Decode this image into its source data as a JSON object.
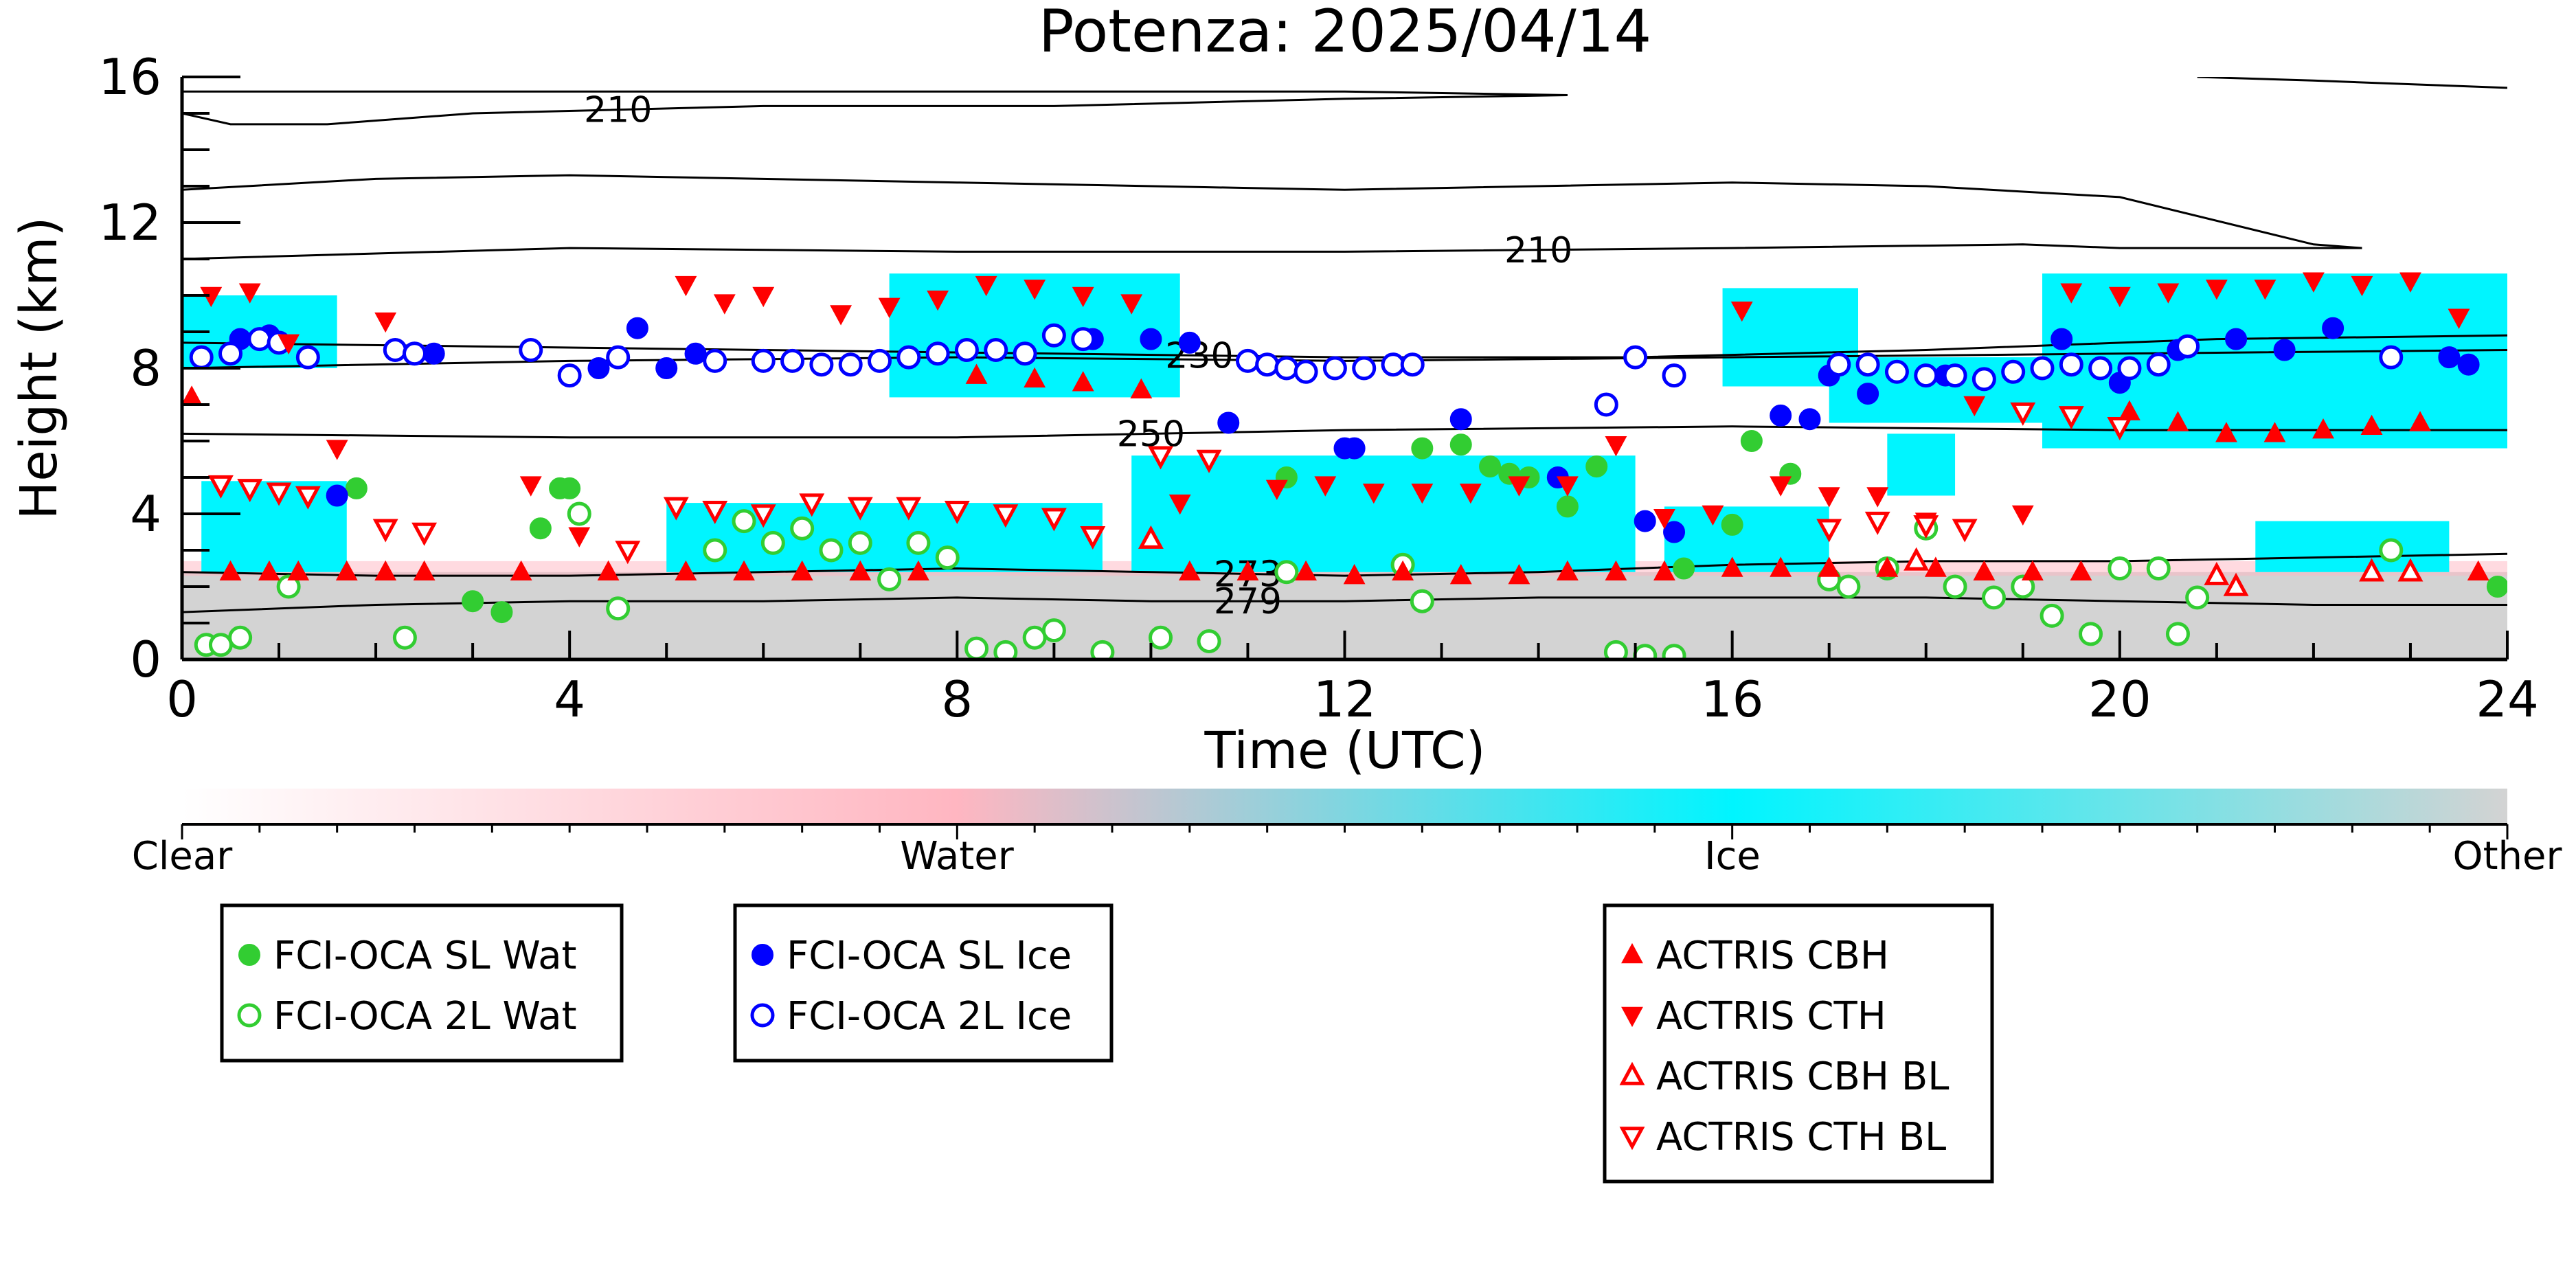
{
  "chart_data": {
    "type": "scatter",
    "title": "Potenza: 2025/04/14",
    "xlabel": "Time (UTC)",
    "ylabel": "Height (km)",
    "xlim": [
      0,
      24
    ],
    "ylim": [
      0,
      16
    ],
    "xticks": [
      0,
      4,
      8,
      12,
      16,
      20,
      24
    ],
    "yticks": [
      0,
      4,
      8,
      12,
      16
    ],
    "background_layers": {
      "description_colors": {
        "Water": "#ffb6c1",
        "Ice": "#00f5ff",
        "Other": "#d3d3d3"
      },
      "ice_regions": [
        {
          "x0": 0.0,
          "x1": 1.6,
          "y0": 8.0,
          "y1": 10.0
        },
        {
          "x0": 7.3,
          "x1": 10.3,
          "y0": 7.2,
          "y1": 10.6
        },
        {
          "x0": 15.9,
          "x1": 17.3,
          "y0": 7.5,
          "y1": 10.2
        },
        {
          "x0": 17.0,
          "x1": 20.0,
          "y0": 6.5,
          "y1": 8.3
        },
        {
          "x0": 19.2,
          "x1": 24.0,
          "y0": 5.8,
          "y1": 10.6
        },
        {
          "x0": 0.2,
          "x1": 1.7,
          "y0": 2.4,
          "y1": 4.9
        },
        {
          "x0": 5.0,
          "x1": 9.5,
          "y0": 2.4,
          "y1": 4.3
        },
        {
          "x0": 9.8,
          "x1": 15.0,
          "y0": 2.4,
          "y1": 5.6
        },
        {
          "x0": 15.3,
          "x1": 17.0,
          "y0": 2.4,
          "y1": 4.2
        },
        {
          "x0": 17.6,
          "x1": 18.3,
          "y0": 4.5,
          "y1": 6.2
        },
        {
          "x0": 21.4,
          "x1": 23.4,
          "y0": 2.4,
          "y1": 3.8
        }
      ],
      "other_bands": [
        {
          "x0": 0.0,
          "x1": 24.0,
          "y0": 0.0,
          "y1": 2.4
        }
      ]
    },
    "isotherms": [
      {
        "label": "210",
        "x": [
          0,
          0.5,
          1.5,
          3,
          6,
          9,
          12,
          14.3
        ],
        "y": [
          15.0,
          14.7,
          14.7,
          15.0,
          15.2,
          15.2,
          15.4,
          15.5
        ]
      },
      {
        "label": "",
        "x": [
          0,
          3,
          6,
          9,
          12,
          14.3
        ],
        "y": [
          15.6,
          15.6,
          15.6,
          15.6,
          15.6,
          15.5
        ]
      },
      {
        "label": "",
        "x": [
          0,
          2,
          4,
          8,
          12,
          16,
          18,
          20,
          22,
          22.5
        ],
        "y": [
          12.9,
          13.2,
          13.3,
          13.1,
          12.9,
          13.1,
          13.0,
          12.7,
          11.4,
          11.3
        ]
      },
      {
        "label": "210",
        "x": [
          0,
          4,
          8,
          12,
          16,
          19,
          20,
          22.5
        ],
        "y": [
          11.0,
          11.3,
          11.2,
          11.2,
          11.3,
          11.4,
          11.3,
          11.3
        ]
      },
      {
        "label": "",
        "x": [
          20.8,
          22,
          23,
          24
        ],
        "y": [
          16.0,
          15.9,
          15.8,
          15.7
        ]
      },
      {
        "label": "230",
        "x": [
          0,
          3,
          6,
          9,
          12,
          15,
          18,
          21,
          24
        ],
        "y": [
          8.7,
          8.6,
          8.5,
          8.4,
          8.3,
          8.3,
          8.5,
          8.8,
          8.9
        ]
      },
      {
        "label": "",
        "x": [
          0,
          4,
          8,
          12,
          16,
          20,
          24
        ],
        "y": [
          8.0,
          8.2,
          8.3,
          8.2,
          8.3,
          8.4,
          8.5
        ]
      },
      {
        "label": "250",
        "x": [
          0,
          4,
          8,
          12,
          16,
          20,
          24
        ],
        "y": [
          6.2,
          6.1,
          6.1,
          6.3,
          6.4,
          6.3,
          6.3
        ]
      },
      {
        "label": "273",
        "x": [
          0,
          2,
          4,
          6,
          8,
          10,
          12,
          14,
          16,
          18,
          20,
          22,
          24
        ],
        "y": [
          2.4,
          2.3,
          2.3,
          2.4,
          2.5,
          2.4,
          2.3,
          2.4,
          2.6,
          2.7,
          2.7,
          2.8,
          2.9
        ]
      },
      {
        "label": "279",
        "x": [
          0,
          2,
          4,
          6,
          8,
          10,
          12,
          14,
          16,
          18,
          20,
          22,
          24
        ],
        "y": [
          1.3,
          1.5,
          1.6,
          1.6,
          1.7,
          1.6,
          1.6,
          1.7,
          1.7,
          1.7,
          1.6,
          1.5,
          1.5
        ]
      }
    ],
    "series": [
      {
        "name": "FCI-OCA SL Wat",
        "marker": "circle-filled",
        "color": "#32cd32",
        "x": [
          1.8,
          3.0,
          3.3,
          3.7,
          3.9,
          4.0,
          11.4,
          12.8,
          13.2,
          13.5,
          13.7,
          13.9,
          14.3,
          14.6,
          15.5,
          16.0,
          16.2,
          16.6,
          23.9
        ],
        "y": [
          4.7,
          1.6,
          1.3,
          3.6,
          4.7,
          4.7,
          5.0,
          5.8,
          5.9,
          5.3,
          5.1,
          5.0,
          4.2,
          5.3,
          2.5,
          3.7,
          6.0,
          5.1,
          2.0
        ]
      },
      {
        "name": "FCI-OCA 2L Wat",
        "marker": "circle-open",
        "color": "#32cd32",
        "x": [
          0.25,
          0.4,
          0.6,
          1.1,
          2.3,
          4.1,
          4.5,
          5.5,
          5.8,
          6.1,
          6.4,
          6.7,
          7.0,
          7.3,
          7.6,
          7.9,
          8.2,
          8.5,
          8.8,
          9.0,
          9.5,
          10.1,
          10.6,
          11.4,
          12.6,
          12.8,
          14.8,
          15.1,
          15.4,
          17.0,
          17.2,
          17.6,
          18.0,
          18.3,
          18.7,
          19.0,
          19.3,
          19.7,
          20.0,
          20.4,
          20.6,
          20.8,
          22.8
        ],
        "y": [
          0.4,
          0.4,
          0.6,
          2.0,
          0.6,
          4.0,
          1.4,
          3.0,
          3.8,
          3.2,
          3.6,
          3.0,
          3.2,
          2.2,
          3.2,
          2.8,
          0.3,
          0.2,
          0.6,
          0.8,
          0.2,
          0.6,
          0.5,
          2.4,
          2.6,
          1.6,
          0.2,
          0.1,
          0.1,
          2.2,
          2.0,
          2.5,
          3.6,
          2.0,
          1.7,
          2.0,
          1.2,
          0.7,
          2.5,
          2.5,
          0.7,
          1.7,
          3.0
        ]
      },
      {
        "name": "FCI-OCA SL Ice",
        "marker": "circle-filled",
        "color": "#0000ff",
        "x": [
          0.6,
          0.9,
          1.6,
          2.6,
          4.3,
          4.7,
          5.0,
          5.3,
          9.4,
          10.0,
          10.4,
          10.8,
          12.0,
          12.1,
          13.2,
          14.2,
          15.1,
          15.4,
          16.5,
          16.8,
          17.0,
          17.4,
          18.2,
          19.4,
          20.0,
          20.6,
          21.2,
          21.7,
          22.2,
          23.4,
          23.6
        ],
        "y": [
          8.8,
          8.9,
          4.5,
          8.4,
          8.0,
          9.1,
          8.0,
          8.4,
          8.8,
          8.8,
          8.7,
          6.5,
          5.8,
          5.8,
          6.6,
          5.0,
          3.8,
          3.5,
          6.7,
          6.6,
          7.8,
          7.3,
          7.8,
          8.8,
          7.6,
          8.5,
          8.8,
          8.5,
          9.1,
          8.3,
          8.1
        ]
      },
      {
        "name": "FCI-OCA 2L Ice",
        "marker": "circle-open",
        "color": "#0000ff",
        "x": [
          0.2,
          0.5,
          0.8,
          1.0,
          1.3,
          2.2,
          2.4,
          3.6,
          4.0,
          4.5,
          5.5,
          6.0,
          6.3,
          6.6,
          6.9,
          7.2,
          7.5,
          7.8,
          8.1,
          8.4,
          8.7,
          9.0,
          9.3,
          11.0,
          11.2,
          11.4,
          11.6,
          11.9,
          12.2,
          12.5,
          12.7,
          14.7,
          15.0,
          15.4,
          17.1,
          17.4,
          17.7,
          18.0,
          18.3,
          18.6,
          18.9,
          19.2,
          19.5,
          19.8,
          20.1,
          20.4,
          20.7,
          22.8
        ],
        "y": [
          8.3,
          8.4,
          8.8,
          8.7,
          8.3,
          8.5,
          8.4,
          8.5,
          7.8,
          8.3,
          8.2,
          8.2,
          8.2,
          8.1,
          8.1,
          8.2,
          8.3,
          8.4,
          8.5,
          8.5,
          8.4,
          8.9,
          8.8,
          8.2,
          8.1,
          8.0,
          7.9,
          8.0,
          8.0,
          8.1,
          8.1,
          7.0,
          8.3,
          7.8,
          8.1,
          8.1,
          7.9,
          7.8,
          7.8,
          7.7,
          7.9,
          8.0,
          8.1,
          8.0,
          8.0,
          8.1,
          8.6,
          8.3
        ]
      },
      {
        "name": "ACTRIS CBH",
        "marker": "triangle-up-filled",
        "color": "#ff0000",
        "x": [
          0.1,
          0.5,
          0.9,
          1.2,
          1.7,
          2.1,
          2.5,
          3.5,
          4.4,
          5.2,
          5.8,
          6.4,
          7.0,
          7.6,
          8.2,
          8.8,
          9.3,
          9.9,
          10.4,
          11.0,
          11.6,
          12.1,
          12.6,
          13.2,
          13.8,
          14.3,
          14.8,
          15.3,
          16.0,
          16.5,
          17.0,
          17.6,
          18.1,
          18.6,
          19.1,
          19.6,
          20.1,
          20.6,
          21.1,
          21.6,
          22.1,
          22.6,
          23.1,
          23.7
        ],
        "y": [
          7.2,
          2.4,
          2.4,
          2.4,
          2.4,
          2.4,
          2.4,
          2.4,
          2.4,
          2.4,
          2.4,
          2.4,
          2.4,
          2.4,
          7.8,
          7.7,
          7.6,
          7.4,
          2.4,
          2.4,
          2.4,
          2.3,
          2.4,
          2.3,
          2.3,
          2.4,
          2.4,
          2.4,
          2.5,
          2.5,
          2.5,
          2.5,
          2.5,
          2.4,
          2.4,
          2.4,
          6.8,
          6.5,
          6.2,
          6.2,
          6.3,
          6.4,
          6.5,
          2.4
        ]
      },
      {
        "name": "ACTRIS CTH",
        "marker": "triangle-down-filled",
        "color": "#ff0000",
        "x": [
          0.3,
          0.7,
          1.1,
          1.6,
          2.1,
          2.5,
          3.6,
          4.1,
          5.2,
          5.6,
          6.0,
          6.8,
          7.3,
          7.8,
          8.3,
          8.8,
          9.3,
          9.8,
          10.3,
          11.3,
          11.8,
          12.3,
          12.8,
          13.3,
          13.8,
          14.3,
          14.8,
          15.3,
          15.8,
          16.1,
          16.5,
          17.0,
          17.5,
          18.0,
          18.5,
          19.0,
          19.5,
          20.0,
          20.5,
          21.0,
          21.5,
          22.0,
          22.5,
          23.0,
          23.5
        ],
        "y": [
          10.0,
          10.1,
          8.7,
          5.8,
          9.3,
          3.5,
          4.8,
          3.4,
          10.3,
          9.8,
          10.0,
          9.5,
          9.7,
          9.9,
          10.3,
          10.2,
          10.0,
          9.8,
          4.3,
          4.7,
          4.8,
          4.6,
          4.6,
          4.6,
          4.8,
          4.8,
          5.9,
          3.9,
          4.0,
          9.6,
          4.8,
          4.5,
          4.5,
          3.8,
          7.0,
          4.0,
          10.1,
          10.0,
          10.1,
          10.2,
          10.2,
          10.4,
          10.3,
          10.4,
          9.4
        ]
      },
      {
        "name": "ACTRIS CBH BL",
        "marker": "triangle-up-open",
        "color": "#ff0000",
        "x": [
          10.0,
          17.9,
          21.0,
          21.2,
          22.6,
          23.0
        ],
        "y": [
          3.3,
          2.7,
          2.3,
          2.0,
          2.4,
          2.4
        ]
      },
      {
        "name": "ACTRIS CTH BL",
        "marker": "triangle-down-open",
        "color": "#ff0000",
        "x": [
          0.4,
          0.7,
          1.0,
          1.3,
          2.1,
          2.5,
          4.6,
          5.1,
          5.5,
          6.0,
          6.5,
          7.0,
          7.5,
          8.0,
          8.5,
          9.0,
          9.4,
          10.1,
          10.6,
          17.0,
          17.5,
          18.0,
          18.4,
          19.0,
          19.5,
          20.0
        ],
        "y": [
          4.8,
          4.7,
          4.6,
          4.5,
          3.6,
          3.5,
          3.0,
          4.2,
          4.1,
          4.0,
          4.3,
          4.2,
          4.2,
          4.1,
          4.0,
          3.9,
          3.4,
          5.6,
          5.5,
          3.6,
          3.8,
          3.7,
          3.6,
          6.8,
          6.7,
          6.4
        ]
      }
    ],
    "colorbar": {
      "labels": [
        "Clear",
        "Water",
        "Ice",
        "Other"
      ],
      "colors": [
        "#ffffff",
        "#ffb6c1",
        "#00f5ff",
        "#d3d3d3"
      ]
    },
    "legend_groups": [
      [
        "FCI-OCA SL Wat",
        "FCI-OCA 2L Wat"
      ],
      [
        "FCI-OCA SL Ice",
        "FCI-OCA 2L Ice"
      ],
      [
        "ACTRIS CBH",
        "ACTRIS CTH",
        "ACTRIS CBH BL",
        "ACTRIS CTH BL"
      ]
    ]
  }
}
